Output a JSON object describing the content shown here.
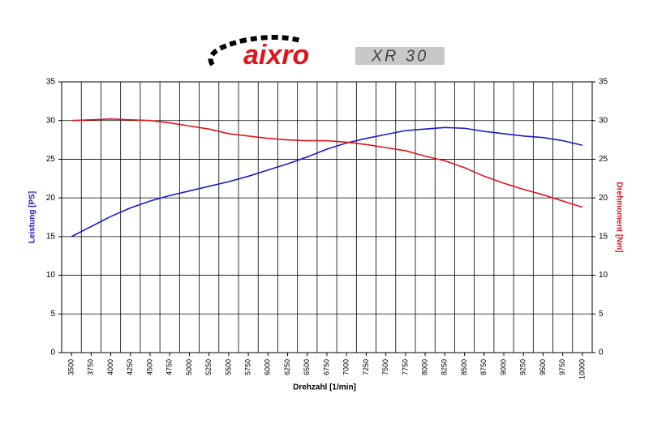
{
  "logo": {
    "brand": "aixro",
    "model": "XR 30"
  },
  "chart_data": {
    "type": "line",
    "xlabel": "Drehzahl [1/min]",
    "ylabel": "Leistung [PS]",
    "y2label": "Drehmoment [Nm]",
    "categories": [
      "3500",
      "3750",
      "4000",
      "4250",
      "4500",
      "4750",
      "5000",
      "5250",
      "5500",
      "5750",
      "6000",
      "6250",
      "6500",
      "6750",
      "7000",
      "7250",
      "7500",
      "7750",
      "8000",
      "8250",
      "8500",
      "8750",
      "9000",
      "9250",
      "9500",
      "9750",
      "10000"
    ],
    "series": [
      {
        "color": "#1a1acc",
        "values": [
          15.0,
          16.3,
          17.6,
          18.7,
          19.6,
          20.3,
          20.9,
          21.5,
          22.1,
          22.8,
          23.6,
          24.4,
          25.3,
          26.3,
          27.1,
          27.7,
          28.2,
          28.7,
          28.9,
          29.1,
          29.0,
          28.6,
          28.3,
          28.0,
          27.8,
          27.4,
          26.8
        ]
      },
      {
        "color": "#e0141e",
        "axis": "y2",
        "values": [
          30.0,
          30.1,
          30.2,
          30.1,
          30.0,
          29.7,
          29.3,
          28.9,
          28.3,
          28.0,
          27.7,
          27.5,
          27.4,
          27.4,
          27.2,
          26.9,
          26.5,
          26.1,
          25.4,
          24.8,
          23.9,
          22.8,
          21.9,
          21.1,
          20.4,
          19.6,
          18.8
        ]
      }
    ],
    "ylim": [
      0,
      35
    ],
    "yticks": [
      0,
      5,
      10,
      15,
      20,
      25,
      30,
      35
    ],
    "y2lim": [
      0,
      35
    ],
    "y2ticks": [
      0,
      5,
      10,
      15,
      20,
      25,
      30,
      35
    ],
    "grid": true
  }
}
